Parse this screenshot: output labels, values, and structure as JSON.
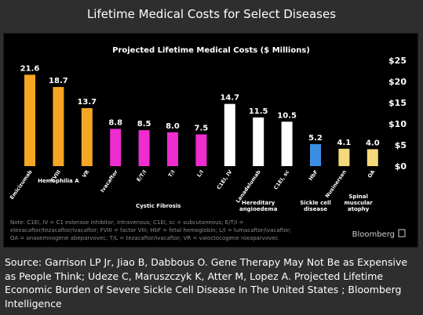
{
  "page": {
    "title": "Lifetime Medical Costs for Select Diseases"
  },
  "chart_data": {
    "type": "bar",
    "title": "Projected Lifetime Medical Costs ($ Millions)",
    "ylim": [
      0,
      25
    ],
    "yticks": [
      "$0",
      "$5",
      "$10",
      "$15",
      "$20",
      "$25"
    ],
    "y_axis_side": "right",
    "grid": false,
    "categories": [
      "Emicizumab",
      "FVIII",
      "VR",
      "Ivacaftor",
      "E/T/I",
      "T/I",
      "L/I",
      "C1EI, IV",
      "Lanadelumab",
      "C1EI, sc",
      "HbF",
      "Nusinersen",
      "OA"
    ],
    "values": [
      21.6,
      18.7,
      13.7,
      8.8,
      8.5,
      8.0,
      7.5,
      14.7,
      11.5,
      10.5,
      5.2,
      4.1,
      4.0
    ],
    "value_labels": [
      "21.6",
      "18.7",
      "13.7",
      "8.8",
      "8.5",
      "8.0",
      "7.5",
      "14.7",
      "11.5",
      "10.5",
      "5.2",
      "4.1",
      "4.0"
    ],
    "bar_colors": [
      "#f5a623",
      "#f5a623",
      "#f5a623",
      "#ee2cd0",
      "#ee2cd0",
      "#ee2cd0",
      "#ee2cd0",
      "#ffffff",
      "#ffffff",
      "#ffffff",
      "#3b8fe3",
      "#f5d97a",
      "#f5d97a"
    ],
    "groups": [
      {
        "label": "Hemophilia A",
        "categories": [
          "Emicizumab",
          "FVIII",
          "VR"
        ]
      },
      {
        "label": "Cystic Fibrosis",
        "categories": [
          "Ivacaftor",
          "E/T/I",
          "T/I",
          "L/I"
        ]
      },
      {
        "label": "Hereditary angioedema",
        "categories": [
          "C1EI, IV",
          "Lanadelumab",
          "C1EI, sc"
        ]
      },
      {
        "label": "Sickle cell disease",
        "categories": [
          "HbF"
        ]
      },
      {
        "label": "Spinal muscular atophy",
        "categories": [
          "Nusinersen",
          "OA"
        ]
      }
    ],
    "note_lines": [
      "Note: C1EI, IV = C1 esterase inhibitor, intravenous; C1EI, sc = subcutaneous; E/T/I =",
      "elexacaftor/tezacaftor/ivacaftor; FVIII = factor VIII; HbF = fetal hemoglobin; L/I = lumacaftor/ivacaftor;",
      "OA = onasemnogene abeparvovec; T/L = tezacaftor/ivacaftor; VR = valoctocogene roxaparvovec"
    ],
    "brand": "Bloomberg"
  },
  "source": {
    "text": "Source: Garrison LP Jr, Jiao B, Dabbous O. Gene Therapy May Not Be as Expensive as People Think; Udeze C, Maruszczyk K, Atter M, Lopez A. Projected Lifetime Economic Burden of Severe Sickle Cell Disease In The United States ; Bloomberg Intelligence"
  }
}
